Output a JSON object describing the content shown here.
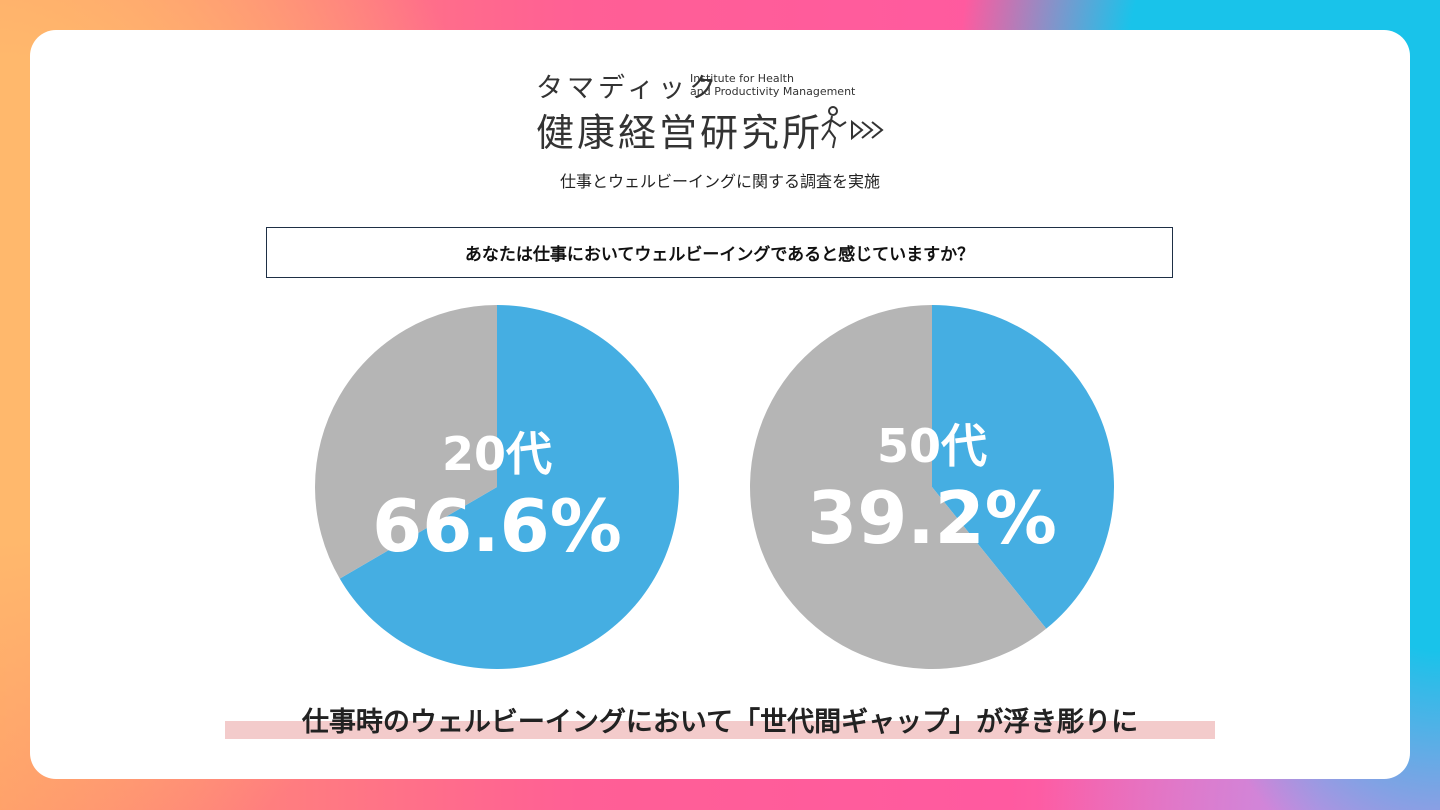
{
  "logo": {
    "kana": "タマディック",
    "english_line1": "Institute for Health",
    "english_line2": "and Productivity Management",
    "kanji": "健康経営研究所",
    "icon": "walking-person-arrows-icon"
  },
  "subtitle": "仕事とウェルビーイングに関する調査を実施",
  "question": "あなたは仕事においてウェルビーイングであると感じていますか？",
  "colors": {
    "yes": "#45aee2",
    "other": "#b5b5b5"
  },
  "chart_data": [
    {
      "type": "pie",
      "label": "20代",
      "value_label": "66.6%",
      "values": [
        66.6,
        33.4
      ],
      "colors": [
        "#45aee2",
        "#b5b5b5"
      ]
    },
    {
      "type": "pie",
      "label": "50代",
      "value_label": "39.2%",
      "values": [
        39.2,
        60.8
      ],
      "colors": [
        "#45aee2",
        "#b5b5b5"
      ]
    }
  ],
  "conclusion": "仕事時のウェルビーイングにおいて「世代間ギャップ」が浮き彫りに"
}
